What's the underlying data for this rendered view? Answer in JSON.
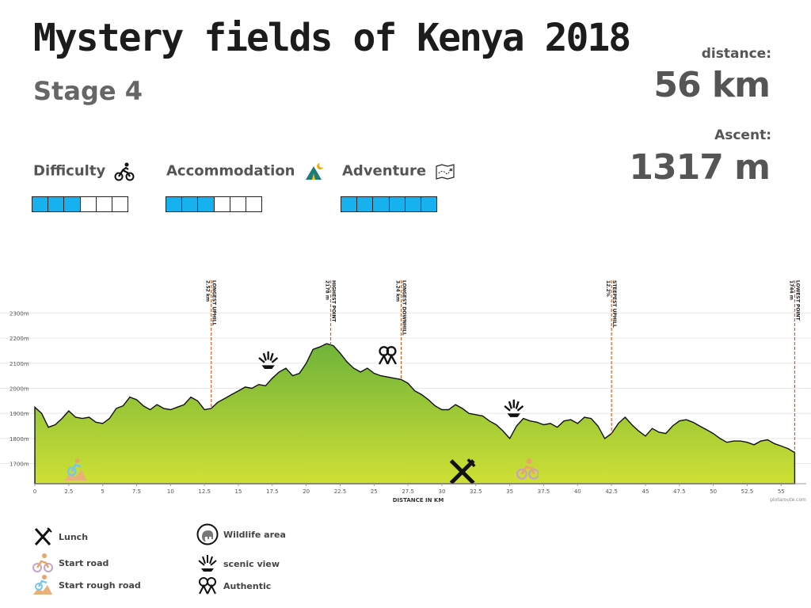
{
  "header": {
    "title": "Mystery fields of Kenya 2018",
    "stage": "Stage 4"
  },
  "stats": {
    "distance_label": "distance:",
    "distance_value": "56 km",
    "ascent_label": "Ascent:",
    "ascent_value": "1317 m"
  },
  "ratings": [
    {
      "label": "Difficulty",
      "icon": "cyclist-icon",
      "filled": 3,
      "total": 6
    },
    {
      "label": "Accommodation",
      "icon": "tent-icon",
      "filled": 3,
      "total": 6
    },
    {
      "label": "Adventure",
      "icon": "map-icon",
      "filled": 6,
      "total": 6
    }
  ],
  "colors": {
    "rating_fill": "#17b1f0",
    "profile_top": "#7fbf3a",
    "profile_bottom": "#c8dc34",
    "marker_line": "#e06020"
  },
  "chart_data": {
    "type": "area",
    "xlabel": "DISTANCE IN KM",
    "ylabel": "",
    "credit": "plotaroute.com",
    "xlim": [
      0,
      56.5
    ],
    "ylim": [
      1620,
      2380
    ],
    "x_ticks": [
      "0",
      "2.5",
      "5",
      "7.5",
      "10",
      "12.5",
      "15",
      "17.5",
      "20",
      "22.5",
      "25",
      "27.5",
      "30",
      "32.5",
      "35",
      "37.5",
      "40",
      "42.5",
      "45",
      "47.5",
      "50",
      "52.5",
      "55"
    ],
    "y_ticks": [
      "1700m",
      "1800m",
      "1900m",
      "2000m",
      "2100m",
      "2200m",
      "2300m"
    ],
    "x": [
      0,
      0.5,
      1,
      1.5,
      2,
      2.5,
      3,
      3.5,
      4,
      4.5,
      5,
      5.5,
      6,
      6.5,
      7,
      7.5,
      8,
      8.5,
      9,
      9.5,
      10,
      10.5,
      11,
      11.5,
      12,
      12.5,
      13,
      13.5,
      14,
      14.5,
      15,
      15.5,
      16,
      16.5,
      17,
      17.5,
      18,
      18.5,
      19,
      19.5,
      20,
      20.5,
      21,
      21.5,
      22,
      22.5,
      23,
      23.5,
      24,
      24.5,
      25,
      25.5,
      26,
      26.5,
      27,
      27.5,
      28,
      28.5,
      29,
      29.5,
      30,
      30.5,
      31,
      31.5,
      32,
      32.5,
      33,
      33.5,
      34,
      34.5,
      35,
      35.5,
      36,
      36.5,
      37,
      37.5,
      38,
      38.5,
      39,
      39.5,
      40,
      40.5,
      41,
      41.5,
      42,
      42.5,
      43,
      43.5,
      44,
      44.5,
      45,
      45.5,
      46,
      46.5,
      47,
      47.5,
      48,
      48.5,
      49,
      49.5,
      50,
      50.5,
      51,
      51.5,
      52,
      52.5,
      53,
      53.5,
      54,
      54.5,
      55,
      55.5,
      56
    ],
    "y": [
      1925,
      1900,
      1845,
      1855,
      1880,
      1910,
      1885,
      1880,
      1885,
      1865,
      1860,
      1880,
      1920,
      1930,
      1965,
      1955,
      1930,
      1915,
      1935,
      1920,
      1915,
      1925,
      1935,
      1965,
      1950,
      1915,
      1920,
      1945,
      1960,
      1975,
      1990,
      2005,
      2000,
      2015,
      2010,
      2040,
      2065,
      2080,
      2050,
      2060,
      2100,
      2155,
      2165,
      2178,
      2170,
      2140,
      2105,
      2080,
      2065,
      2080,
      2060,
      2050,
      2045,
      2040,
      2035,
      2020,
      1990,
      1975,
      1955,
      1930,
      1915,
      1915,
      1935,
      1920,
      1900,
      1895,
      1890,
      1870,
      1855,
      1830,
      1800,
      1850,
      1880,
      1870,
      1865,
      1855,
      1860,
      1845,
      1870,
      1875,
      1860,
      1885,
      1880,
      1850,
      1800,
      1820,
      1860,
      1885,
      1855,
      1830,
      1810,
      1840,
      1825,
      1820,
      1850,
      1870,
      1875,
      1865,
      1850,
      1835,
      1820,
      1800,
      1785,
      1790,
      1790,
      1785,
      1775,
      1790,
      1795,
      1780,
      1770,
      1760,
      1744
    ],
    "markers": [
      {
        "label": "LONGEST UPHILL",
        "value": "2.52 km",
        "x": 13
      },
      {
        "label": "HIGHEST POINT",
        "value": "2178 m",
        "x": 21.8
      },
      {
        "label": "LONGEST DOWNHILL",
        "value": "3.24 km",
        "x": 27
      },
      {
        "label": "STEEPEST UPHILL",
        "value": "12.2%",
        "x": 42.5
      },
      {
        "label": "LOWEST POINT",
        "value": "1744 m",
        "x": 56
      }
    ],
    "points_of_interest": [
      {
        "icon": "start-rough-road-icon",
        "x": 3
      },
      {
        "icon": "scenic-view-icon",
        "x": 17.2
      },
      {
        "icon": "authentic-icon",
        "x": 26
      },
      {
        "icon": "lunch-icon",
        "x": 31.5
      },
      {
        "icon": "start-road-icon",
        "x": 36.3
      },
      {
        "icon": "scenic-view-icon",
        "x": 35.3
      }
    ]
  },
  "legend": {
    "lunch": "Lunch",
    "start_road": "Start road",
    "start_rough_road": "Start rough road",
    "wildlife_area": "Wildlife area",
    "scenic_view": "scenic view",
    "authentic": "Authentic"
  }
}
